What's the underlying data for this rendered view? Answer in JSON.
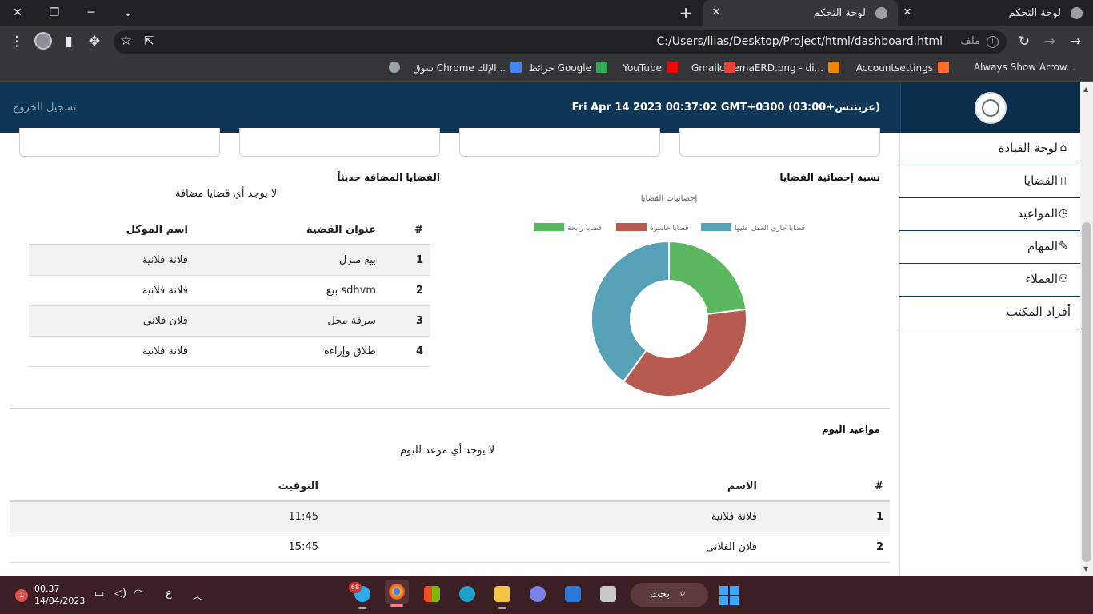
{
  "browser": {
    "tabs": [
      {
        "title": "لوحة التحكم"
      },
      {
        "title": "لوحة التحكم"
      }
    ],
    "address": {
      "url": "C:/Users/lilas/Desktop/Project/html/dashboard.html",
      "scheme_label": "ملف"
    },
    "bookmarks": [
      {
        "label": "Always Show Arrow...",
        "icon": "extension-icon",
        "color": "#e8eaed"
      },
      {
        "label": "Accountsettings",
        "icon": "cpanel-icon",
        "color": "#ff6c2c"
      },
      {
        "label": "cinemaERD.png - di...",
        "icon": "drawio-icon",
        "color": "#f08705"
      },
      {
        "label": "Gmail",
        "icon": "gmail-icon",
        "color": "#ea4335"
      },
      {
        "label": "YouTube",
        "icon": "youtube-icon",
        "color": "#ff0000"
      },
      {
        "label": "خرائط Google",
        "icon": "maps-icon",
        "color": "#34a853"
      },
      {
        "label": "سوق Chrome الإلك...",
        "icon": "webstore-icon",
        "color": "#4285f4"
      }
    ]
  },
  "header": {
    "datetime": "Fri Apr 14 2023 00:37:02 GMT+0300 (غرينتش+03:00)",
    "logout_label": "تسجيل الخروج"
  },
  "sidebar": {
    "items": [
      {
        "label": "لوحة القيادة",
        "icon": "home-icon"
      },
      {
        "label": "القضايا",
        "icon": "file-icon"
      },
      {
        "label": "المواعيد",
        "icon": "clock-icon"
      },
      {
        "label": "المهام",
        "icon": "tasks-icon"
      },
      {
        "label": "العملاء",
        "icon": "users-icon"
      },
      {
        "label": "أفراد المكتب",
        "icon": ""
      }
    ]
  },
  "stats_section": {
    "title": "نسبة إحصائية القضايا"
  },
  "chart_data": {
    "type": "pie",
    "title": "إحصائيات القضايا",
    "legend_position": "top",
    "series": [
      {
        "name": "قضايا جاري العمل عليها",
        "value": 40,
        "color": "#56a0b8"
      },
      {
        "name": "قضايا خاسرة",
        "value": 37,
        "color": "#b75a50"
      },
      {
        "name": "قضايا رابحة",
        "value": 23,
        "color": "#5cb860"
      }
    ]
  },
  "recent_cases": {
    "title": "القضايا المضافة حديثاً",
    "empty_message": "لا يوجد أي قضايا مضافة",
    "columns": [
      "#",
      "عنوان القضية",
      "اسم الموكل"
    ],
    "rows": [
      {
        "num": "1",
        "title": "بيع منزل",
        "client": "فلانة فلانية"
      },
      {
        "num": "2",
        "title": "بيع sdhvm",
        "client": "فلانة فلانية"
      },
      {
        "num": "3",
        "title": "سرقة محل",
        "client": "فلان فلاني"
      },
      {
        "num": "4",
        "title": "طلاق وإراءة",
        "client": "فلانة فلانية"
      }
    ]
  },
  "appointments": {
    "title": "مواعيد اليوم",
    "empty_message": "لا يوجد أي موعد لليوم",
    "columns": [
      "#",
      "الاسم",
      "التوقيت"
    ],
    "rows": [
      {
        "num": "1",
        "name": "فلانة فلانية",
        "time": "11:45"
      },
      {
        "num": "2",
        "name": "فلان الفلاني",
        "time": "15:45"
      }
    ]
  },
  "taskbar": {
    "telegram_badge": "68",
    "search_label": "بحث",
    "clock_time": "00.37",
    "clock_date": "14/04/2023",
    "language": "ع",
    "notification_count": "1"
  }
}
